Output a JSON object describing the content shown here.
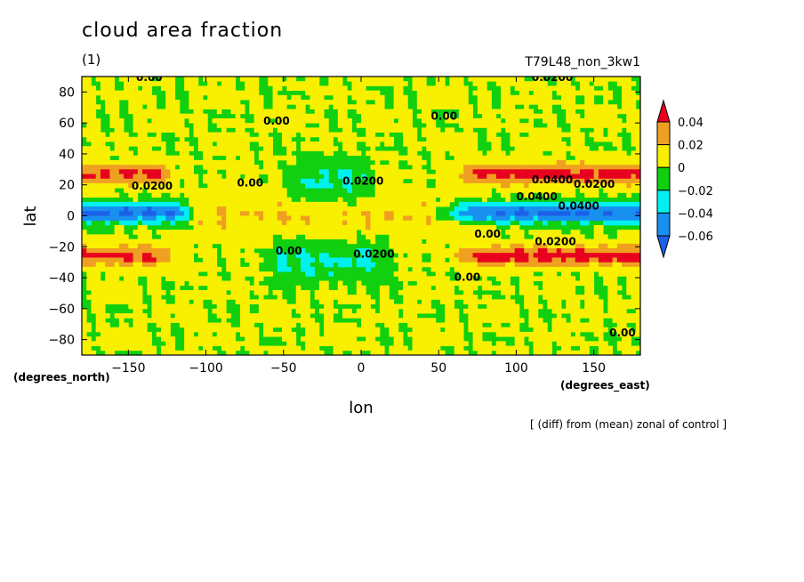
{
  "header": {
    "title": "cloud area fraction",
    "panel_label": "(1)",
    "run_name": "T79L48_non_3kw1",
    "footnote": "[ (diff) from (mean) zonal of control ]"
  },
  "chart_data": {
    "type": "heatmap",
    "title": "cloud area fraction",
    "xlabel": "lon",
    "ylabel": "lat",
    "x_unit": "(degrees_east)",
    "y_unit": "(degrees_north)",
    "xlim": [
      -180,
      180
    ],
    "ylim": [
      -90,
      90
    ],
    "x_ticks": [
      -150,
      -100,
      -50,
      0,
      50,
      100,
      150
    ],
    "y_ticks": [
      80,
      60,
      40,
      20,
      0,
      -20,
      -40,
      -60,
      -80
    ],
    "colorbar": {
      "levels": [
        0.04,
        0.02,
        0,
        -0.02,
        -0.04,
        -0.06
      ],
      "colors": [
        "#e8001f",
        "#f0a020",
        "#f8f000",
        "#10d010",
        "#00f0f0",
        "#1890f0",
        "#1c60e8"
      ]
    },
    "contour_labels": [
      "0.00",
      "0.00",
      "0.00",
      "0.0200",
      "0.0400",
      "0.0200",
      "0.0200",
      "0.0400",
      "0.0400",
      "0.0200",
      "0.00",
      "0.00",
      "0.00",
      "0.0200",
      "0.00",
      "0.0200",
      "0.00"
    ],
    "bands": [
      {
        "lat": 27,
        "lon_from": 80,
        "lon_to": 180,
        "value": 0.045
      },
      {
        "lat": -26,
        "lon_from": 80,
        "lon_to": 180,
        "value": 0.045
      },
      {
        "lat": 27,
        "lon_from": -180,
        "lon_to": -130,
        "value": 0.04
      },
      {
        "lat": -26,
        "lon_from": -180,
        "lon_to": -130,
        "value": 0.04
      },
      {
        "lat": 2,
        "lon_from": 70,
        "lon_to": 180,
        "value": -0.065
      },
      {
        "lat": 2,
        "lon_from": -180,
        "lon_to": -120,
        "value": -0.065
      },
      {
        "lat": 22,
        "lon_from": -40,
        "lon_to": 0,
        "value": -0.025
      },
      {
        "lat": -29,
        "lon_from": -50,
        "lon_to": 10,
        "value": -0.025
      },
      {
        "lat": 0,
        "lon_from": -90,
        "lon_to": 55,
        "value": 0.015
      }
    ]
  }
}
